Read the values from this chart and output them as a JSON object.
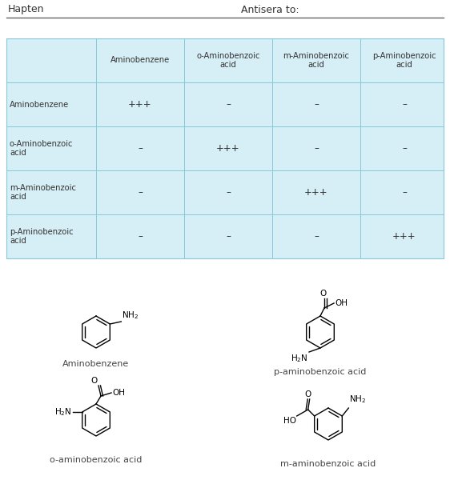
{
  "title_hapten": "Hapten",
  "title_antisera": "Antisera to:",
  "col_headers": [
    "Aminobenzene",
    "o-Aminobenzoic\nacid",
    "m-Aminobenzoic\nacid",
    "p-Aminobenzoic\nacid"
  ],
  "row_headers": [
    "Aminobenzene",
    "o-Aminobenzoic\nacid",
    "m-Aminobenzoic\nacid",
    "p-Aminobenzoic\nacid"
  ],
  "table_data": [
    [
      "+++",
      "–",
      "–",
      "–"
    ],
    [
      "–",
      "+++",
      "–",
      "–"
    ],
    [
      "–",
      "–",
      "+++",
      "–"
    ],
    [
      "–",
      "–",
      "–",
      "+++"
    ]
  ],
  "table_bg": "#d6eef5",
  "table_border": "#88c8d8",
  "bg_color": "#ffffff",
  "text_color": "#333333",
  "label_color": "#444444"
}
